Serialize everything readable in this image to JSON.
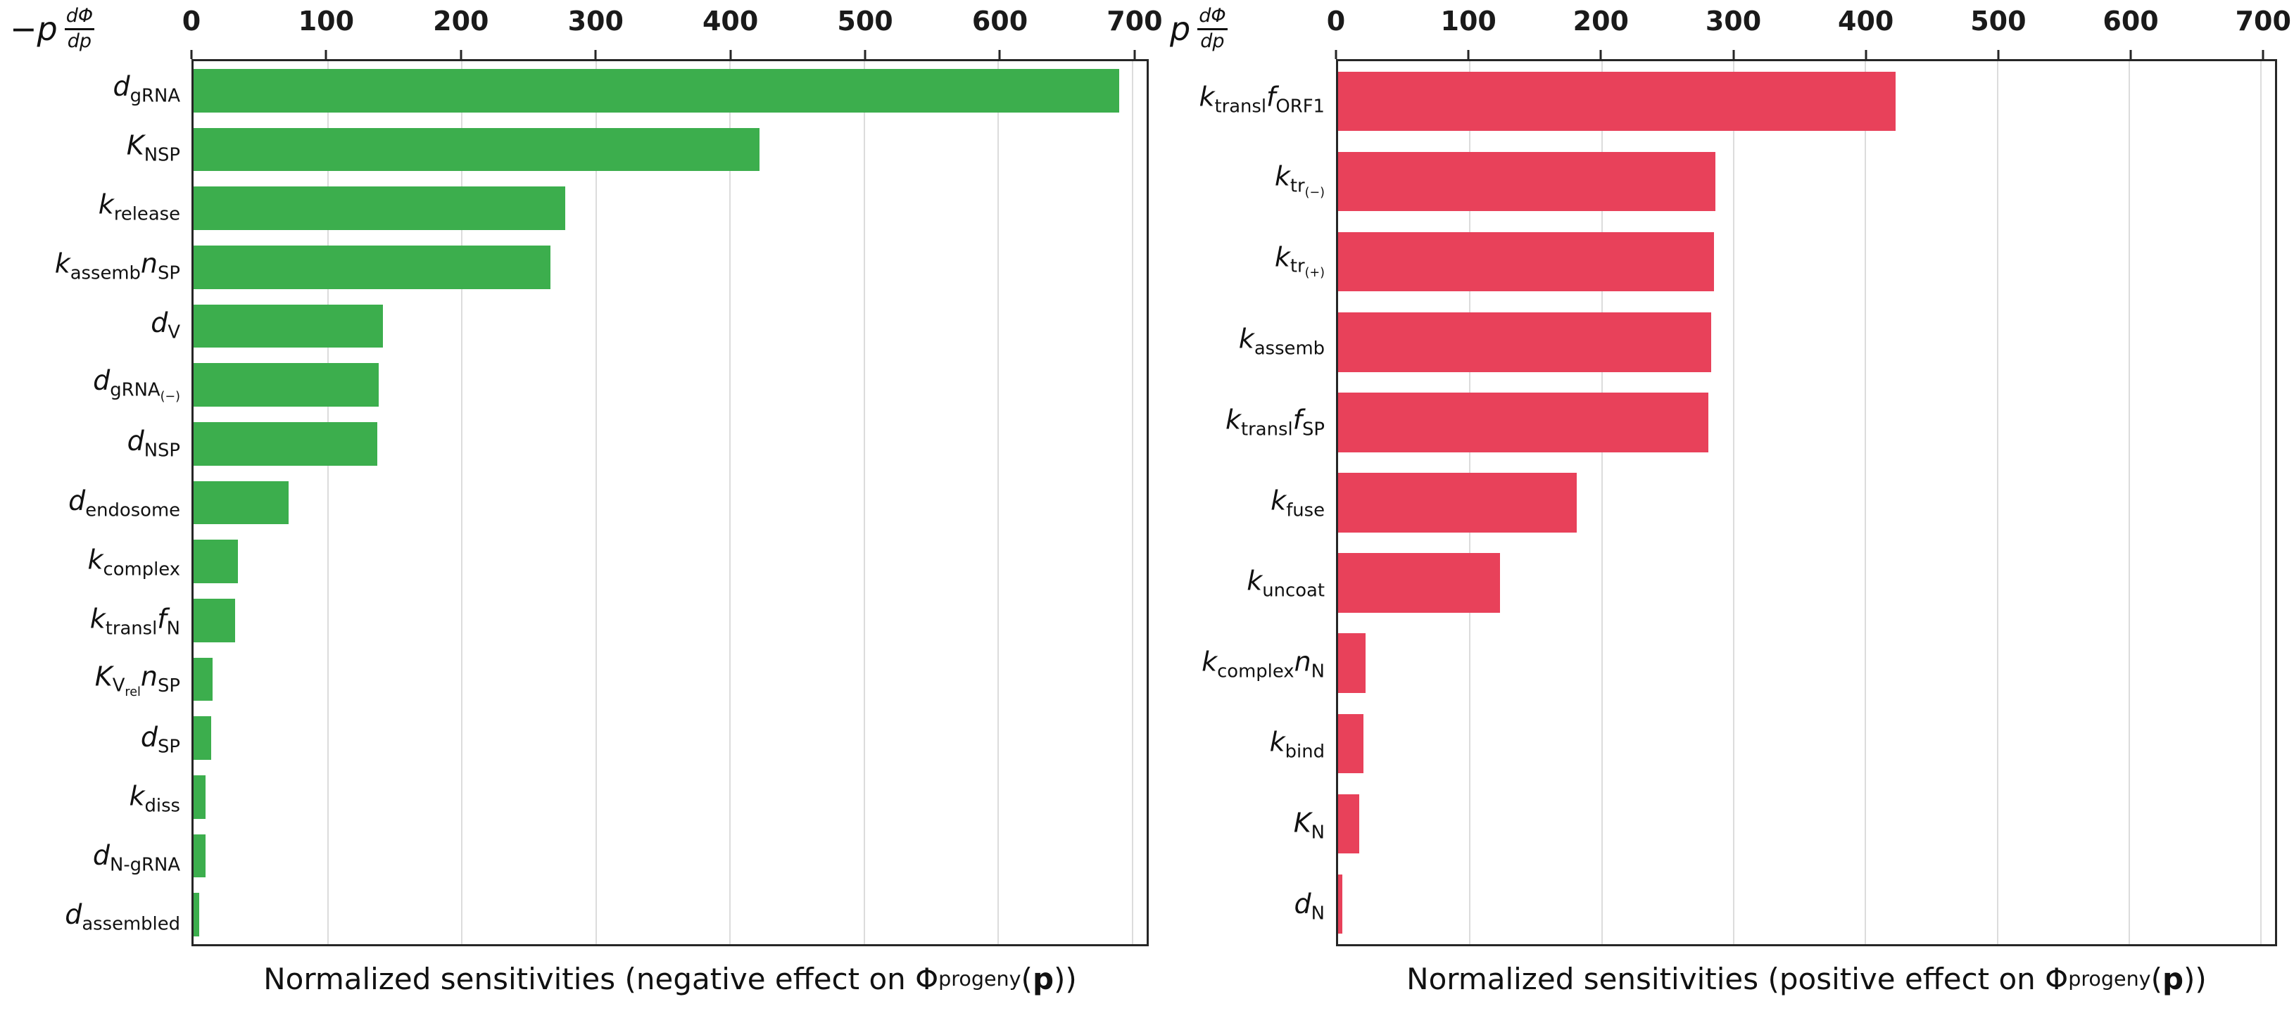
{
  "chart_data": [
    {
      "type": "bar",
      "orientation": "horizontal",
      "side": "negative",
      "color": "#3cae4d",
      "corner_formula": {
        "prefix": "−p",
        "numerator": "dΦ",
        "denominator": "dp"
      },
      "xlabel": "Normalized sensitivities (negative effect on Φ_{progeny}(**p**))",
      "xlim": [
        0,
        700
      ],
      "ticks": [
        0,
        100,
        200,
        300,
        400,
        500,
        600,
        700
      ],
      "grid": true,
      "categories": [
        "d_{gRNA}",
        "K_{NSP}",
        "k_{release}",
        "k_{assemb}n_{SP}",
        "d_{V}",
        "d_{gRNA_{(−)}}",
        "d_{NSP}",
        "d_{endosome}",
        "k_{complex}",
        "k_{transl}f_{N}",
        "K_{V_{rel}}n_{SP}",
        "d_{SP}",
        "k_{diss}",
        "d_{N-gRNA}",
        "d_{assembled}"
      ],
      "values": [
        690,
        422,
        277,
        266,
        141,
        138,
        137,
        71,
        33,
        31,
        14,
        13,
        9,
        9,
        4
      ]
    },
    {
      "type": "bar",
      "orientation": "horizontal",
      "side": "positive",
      "color": "#e8415a",
      "corner_formula": {
        "prefix": "p",
        "numerator": "dΦ",
        "denominator": "dp"
      },
      "xlabel": "Normalized sensitivities (positive effect on Φ_{progeny}(**p**))",
      "xlim": [
        0,
        700
      ],
      "ticks": [
        0,
        100,
        200,
        300,
        400,
        500,
        600,
        700
      ],
      "grid": true,
      "categories": [
        "k_{transl}f_{ORF1}",
        "k_{tr_{(−)}}",
        "k_{tr_{(+)}}",
        "k_{assemb}",
        "k_{transl}f_{SP}",
        "k_{fuse}",
        "k_{uncoat}",
        "k_{complex}n_{N}",
        "k_{bind}",
        "K_{N}",
        "d_{N}"
      ],
      "values": [
        423,
        286,
        285,
        283,
        281,
        181,
        123,
        21,
        19,
        16,
        3
      ]
    }
  ]
}
